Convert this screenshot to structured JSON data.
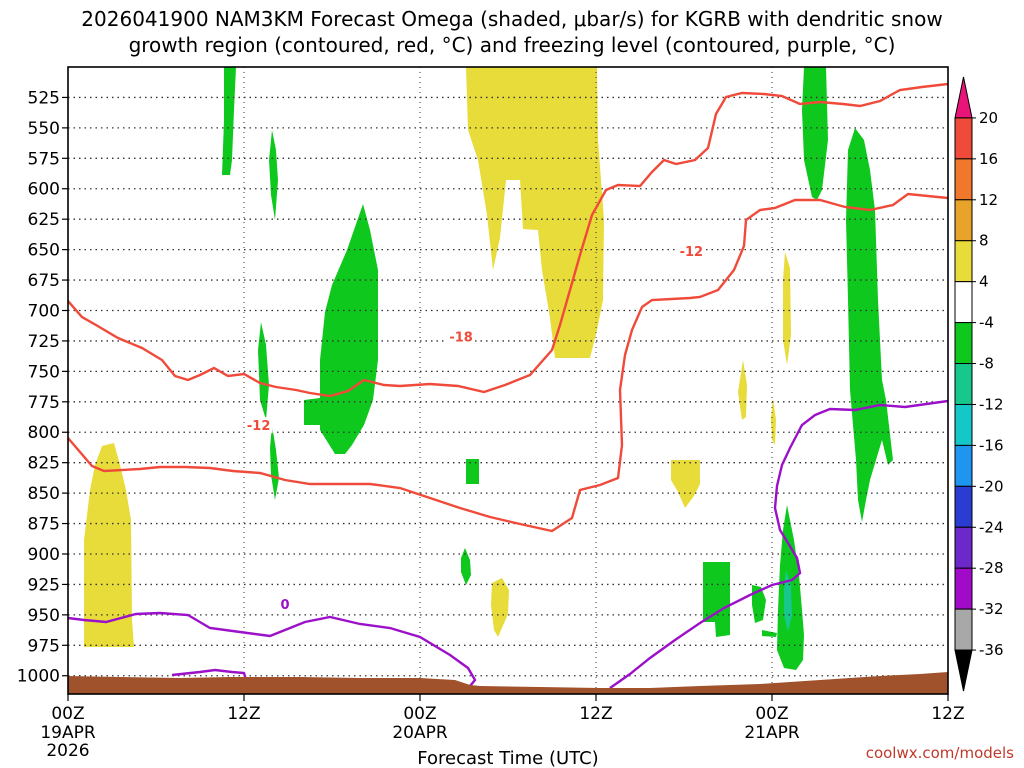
{
  "chart_data": {
    "type": "heatmap",
    "title": {
      "line1": "2026041900 NAM3KM Forecast Omega (shaded, μbar/s) for KGRB with dendritic snow",
      "line2": "growth region (contoured, red, °C) and freezing level (contoured, purple, °C)"
    },
    "xlabel": "Forecast Time (UTC)",
    "x_ticks": [
      {
        "hour": 0,
        "label": "00Z",
        "sub1": "19APR",
        "sub2": "2026"
      },
      {
        "hour": 12,
        "label": "12Z",
        "sub1": "",
        "sub2": ""
      },
      {
        "hour": 24,
        "label": "00Z",
        "sub1": "20APR",
        "sub2": ""
      },
      {
        "hour": 36,
        "label": "12Z",
        "sub1": "",
        "sub2": ""
      },
      {
        "hour": 48,
        "label": "00Z",
        "sub1": "21APR",
        "sub2": ""
      },
      {
        "hour": 60,
        "label": "12Z",
        "sub1": "",
        "sub2": ""
      }
    ],
    "xlim": [
      0,
      60
    ],
    "y_ticks": [
      525,
      550,
      575,
      600,
      625,
      650,
      675,
      700,
      725,
      750,
      775,
      800,
      825,
      850,
      875,
      900,
      925,
      950,
      975,
      1000
    ],
    "ylim_hPa": [
      500,
      1015
    ],
    "grid": "dotted",
    "colorbar": {
      "labels": [
        "20",
        "16",
        "12",
        "8",
        "4",
        "-4",
        "-8",
        "-12",
        "-16",
        "-20",
        "-24",
        "-28",
        "-32",
        "-36"
      ],
      "bins": [
        {
          "color": "#e8147a"
        },
        {
          "color": "#f04a3a"
        },
        {
          "color": "#f0782a"
        },
        {
          "color": "#e8a32a"
        },
        {
          "color": "#e8dc3a"
        },
        {
          "color": "#ffffff"
        },
        {
          "color": "#0ec81e"
        },
        {
          "color": "#16c88c"
        },
        {
          "color": "#14c8c8"
        },
        {
          "color": "#1e96f0"
        },
        {
          "color": "#2a3cd2"
        },
        {
          "color": "#6c28c8"
        },
        {
          "color": "#a00ac8"
        },
        {
          "color": "#a8a8a8"
        },
        {
          "color": "#000000"
        }
      ]
    },
    "colors": {
      "upward_strong": "#0ec81e",
      "downward_weak": "#e8dc3a",
      "dgz_contour": "#f04a3a",
      "freezing_contour": "#9b10c8",
      "ground": "#a0522d"
    },
    "contour_labels": [
      {
        "text": "-18",
        "color": "#f04a3a",
        "hour": 26.8,
        "p": 722
      },
      {
        "text": "-12",
        "color": "#f04a3a",
        "hour": 13.0,
        "p": 795
      },
      {
        "text": "-12",
        "color": "#f04a3a",
        "hour": 42.5,
        "p": 652
      },
      {
        "text": "0",
        "color": "#9b10c8",
        "hour": 14.8,
        "p": 942
      }
    ],
    "credit": "coolwx.com/models"
  }
}
